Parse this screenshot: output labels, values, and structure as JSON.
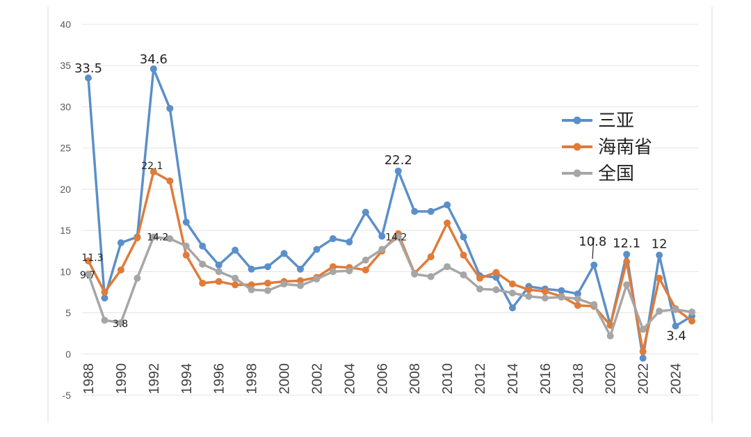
{
  "chart_data": {
    "type": "line",
    "title": "",
    "xlabel": "",
    "ylabel": "",
    "ylim": [
      -5,
      40
    ],
    "yticks": [
      -5,
      0,
      5,
      10,
      15,
      20,
      25,
      30,
      35,
      40
    ],
    "xrange": [
      1988,
      2025
    ],
    "xticks": [
      "1988",
      "1990",
      "1992",
      "1994",
      "1996",
      "1998",
      "2000",
      "2002",
      "2004",
      "2006",
      "2008",
      "2010",
      "2012",
      "2014",
      "2016",
      "2018",
      "2020",
      "2022",
      "2024"
    ],
    "grid": true,
    "legend_position": "right",
    "x": [
      1988,
      1989,
      1990,
      1991,
      1992,
      1993,
      1994,
      1995,
      1996,
      1997,
      1998,
      1999,
      2000,
      2001,
      2002,
      2003,
      2004,
      2005,
      2006,
      2007,
      2008,
      2009,
      2010,
      2011,
      2012,
      2013,
      2014,
      2015,
      2016,
      2017,
      2018,
      2019,
      2020,
      2021,
      2022,
      2023,
      2024,
      2025
    ],
    "series": [
      {
        "name": "三亚",
        "color": "#5b8fc9",
        "values": [
          33.5,
          6.8,
          13.5,
          14.2,
          34.6,
          29.8,
          16.0,
          13.1,
          10.8,
          12.6,
          10.3,
          10.6,
          12.2,
          10.3,
          12.7,
          14.0,
          13.6,
          17.2,
          14.3,
          22.2,
          17.3,
          17.3,
          18.1,
          14.2,
          9.5,
          9.3,
          5.6,
          8.2,
          7.9,
          7.7,
          7.3,
          10.8,
          3.5,
          12.1,
          -0.5,
          12.0,
          3.4,
          4.6
        ]
      },
      {
        "name": "海南省",
        "color": "#e07b39",
        "values": [
          11.3,
          7.5,
          10.2,
          14.1,
          22.1,
          21.0,
          12.0,
          8.6,
          8.8,
          8.4,
          8.4,
          8.6,
          8.8,
          8.9,
          9.3,
          10.6,
          10.5,
          10.2,
          12.5,
          14.6,
          9.8,
          11.8,
          15.9,
          12.0,
          9.2,
          9.9,
          8.5,
          7.8,
          7.6,
          7.0,
          5.9,
          5.8,
          3.5,
          11.2,
          0.3,
          9.2,
          5.5,
          4.0
        ]
      },
      {
        "name": "全国",
        "color": "#a6a6a6",
        "values": [
          9.7,
          4.1,
          3.8,
          9.2,
          14.2,
          14.0,
          13.1,
          10.9,
          10.0,
          9.2,
          7.8,
          7.7,
          8.5,
          8.3,
          9.1,
          10.0,
          10.1,
          11.4,
          12.7,
          14.2,
          9.7,
          9.4,
          10.6,
          9.6,
          7.9,
          7.8,
          7.4,
          7.0,
          6.8,
          6.9,
          6.7,
          6.0,
          2.2,
          8.4,
          3.0,
          5.2,
          5.4,
          5.1
        ]
      }
    ],
    "annotations": [
      {
        "text": "33.5",
        "x": 1988,
        "y": 33.5,
        "size": "big",
        "anchor": "middle",
        "dx": 0,
        "dy": -8
      },
      {
        "text": "34.6",
        "x": 1992,
        "y": 34.6,
        "size": "big",
        "anchor": "middle",
        "dx": 0,
        "dy": -8
      },
      {
        "text": "22.1",
        "x": 1992,
        "y": 22.1,
        "size": "small",
        "anchor": "middle",
        "dx": -2,
        "dy": -4
      },
      {
        "text": "11.3",
        "x": 1988,
        "y": 11.3,
        "size": "small",
        "anchor": "middle",
        "dx": 6,
        "dy": 0
      },
      {
        "text": "9.7",
        "x": 1988,
        "y": 9.7,
        "size": "small",
        "anchor": "middle",
        "dx": -1,
        "dy": 6
      },
      {
        "text": "3.8",
        "x": 1990,
        "y": 3.8,
        "size": "small",
        "anchor": "start",
        "dx": -12,
        "dy": 6
      },
      {
        "text": "14.2",
        "x": 1993,
        "y": 14.2,
        "size": "small",
        "anchor": "end",
        "dx": -2,
        "dy": 5
      },
      {
        "text": "22.2",
        "x": 2007,
        "y": 22.2,
        "size": "big",
        "anchor": "middle",
        "dx": 0,
        "dy": -10
      },
      {
        "text": "14.2",
        "x": 2007,
        "y": 14.2,
        "size": "small",
        "anchor": "middle",
        "dx": -3,
        "dy": 5
      },
      {
        "text": "10.8",
        "x": 2019,
        "y": 10.8,
        "size": "big",
        "anchor": "middle",
        "dx": -2,
        "dy": -28
      },
      {
        "text": "12.1",
        "x": 2021,
        "y": 12.1,
        "size": "big",
        "anchor": "middle",
        "dx": 0,
        "dy": -10
      },
      {
        "text": "12",
        "x": 2023,
        "y": 12.0,
        "size": "big",
        "anchor": "middle",
        "dx": 0,
        "dy": -10
      },
      {
        "text": "3.4",
        "x": 2024,
        "y": 3.4,
        "size": "big",
        "anchor": "middle",
        "dx": 1,
        "dy": 20
      }
    ]
  }
}
